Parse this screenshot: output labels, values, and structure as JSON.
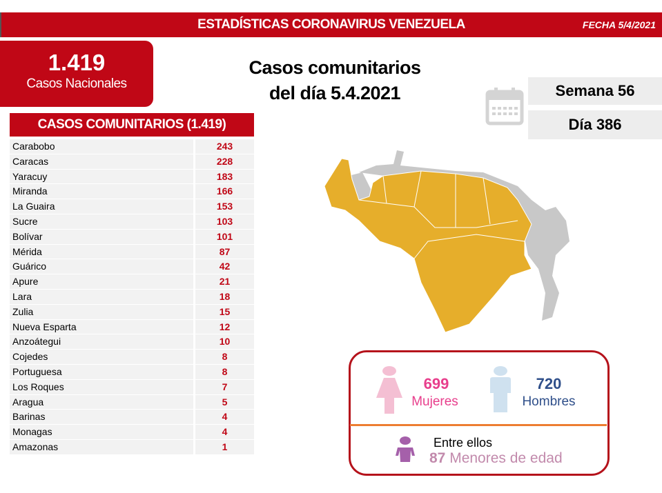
{
  "header": {
    "title": "ESTADÍSTICAS CORONAVIRUS VENEZUELA",
    "date": "FECHA 5/4/2021"
  },
  "national": {
    "value": "1.419",
    "label": "Casos Nacionales"
  },
  "subtitle": {
    "line1": "Casos comunitarios",
    "line2": "del día 5.4.2021"
  },
  "calendar": {
    "icon": "calendar-icon",
    "week": "Semana 56",
    "day": "Día 386"
  },
  "table": {
    "title": "CASOS COMUNITARIOS (1.419)",
    "rows": [
      {
        "state": "Carabobo",
        "cases": "243"
      },
      {
        "state": "Caracas",
        "cases": "228"
      },
      {
        "state": "Yaracuy",
        "cases": "183"
      },
      {
        "state": "Miranda",
        "cases": "166"
      },
      {
        "state": "La Guaira",
        "cases": "153"
      },
      {
        "state": "Sucre",
        "cases": "103"
      },
      {
        "state": "Bolívar",
        "cases": "101"
      },
      {
        "state": "Mérida",
        "cases": "87"
      },
      {
        "state": "Guárico",
        "cases": "42"
      },
      {
        "state": "Apure",
        "cases": "21"
      },
      {
        "state": "Lara",
        "cases": "18"
      },
      {
        "state": "Zulia",
        "cases": "15"
      },
      {
        "state": "Nueva Esparta",
        "cases": "12"
      },
      {
        "state": "Anzoátegui",
        "cases": "10"
      },
      {
        "state": "Cojedes",
        "cases": "8"
      },
      {
        "state": "Portuguesa",
        "cases": "8"
      },
      {
        "state": "Los Roques",
        "cases": "7"
      },
      {
        "state": "Aragua",
        "cases": "5"
      },
      {
        "state": "Barinas",
        "cases": "4"
      },
      {
        "state": "Monagas",
        "cases": "4"
      },
      {
        "state": "Amazonas",
        "cases": "1"
      }
    ]
  },
  "gender": {
    "women": {
      "value": "699",
      "label": "Mujeres",
      "color": "#e83e8c"
    },
    "men": {
      "value": "720",
      "label": "Hombres",
      "color": "#2f4f8a"
    },
    "minors_intro": "Entre ellos",
    "minors_value": "87",
    "minors_label": "Menores de edad"
  },
  "colors": {
    "brand_red": "#c00716",
    "map_affected": "#e6ae2b",
    "map_unaffected": "#c8c8c8"
  }
}
